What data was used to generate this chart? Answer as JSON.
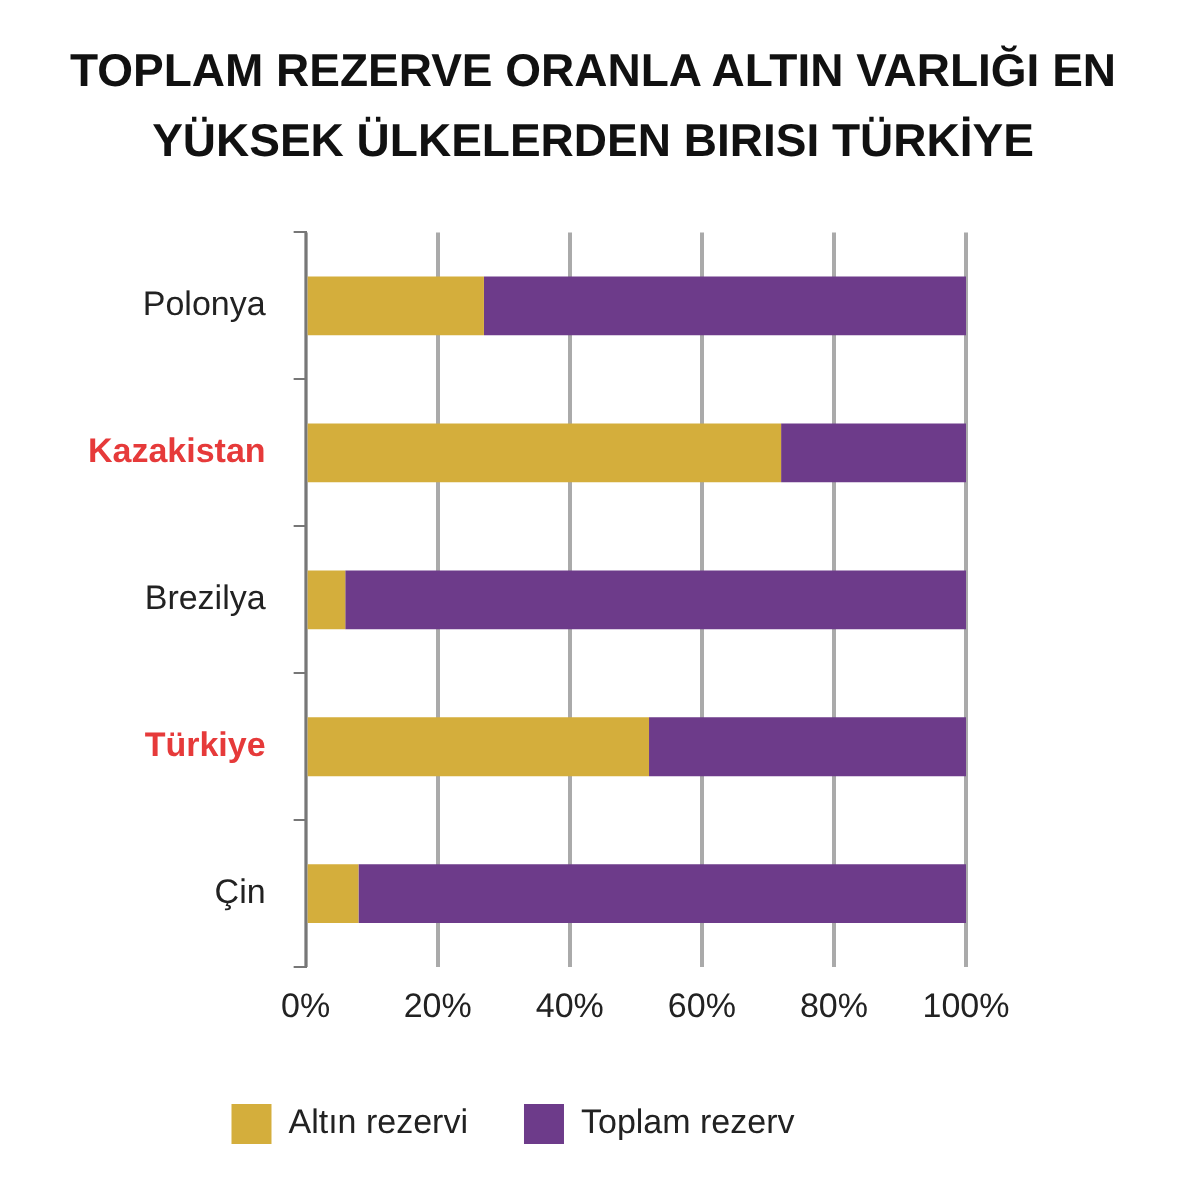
{
  "chart_data": {
    "type": "bar",
    "orientation": "horizontal",
    "stacked": true,
    "title": "TOPLAM REZERVE ORANLA ALTIN VARLIĞI EN YÜKSEK ÜLKELERDEN BIRISI TÜRKİYE",
    "categories": [
      "Polonya",
      "Kazakistan",
      "Brezilya",
      "Türkiye",
      "Çin"
    ],
    "series": [
      {
        "name": "Altın rezervi",
        "color": "#d4ae3c",
        "values": [
          27,
          72,
          6,
          52,
          8
        ]
      },
      {
        "name": "Toplam rezerv",
        "color": "#6d3b8a",
        "values": [
          73,
          28,
          94,
          48,
          92
        ]
      }
    ],
    "xlim": [
      0,
      100
    ],
    "xticks": [
      {
        "value": 0,
        "label": "0%"
      },
      {
        "value": 20,
        "label": "20%"
      },
      {
        "value": 40,
        "label": "40%"
      },
      {
        "value": 60,
        "label": "60%"
      },
      {
        "value": 80,
        "label": "80%"
      },
      {
        "value": 100,
        "label": "100%"
      }
    ],
    "grid": "x",
    "legend": "bottom"
  }
}
